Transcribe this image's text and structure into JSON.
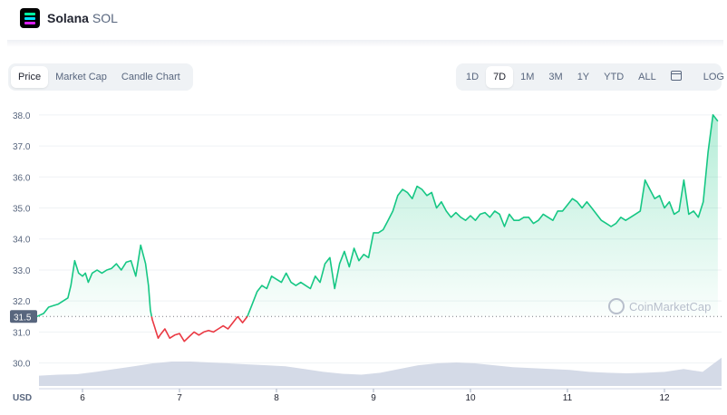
{
  "header": {
    "coin_name": "Solana",
    "ticker": "SOL"
  },
  "chart_tabs": [
    {
      "label": "Price",
      "active": true
    },
    {
      "label": "Market Cap",
      "active": false
    },
    {
      "label": "Candle Chart",
      "active": false
    }
  ],
  "ranges": [
    {
      "label": "1D",
      "active": false
    },
    {
      "label": "7D",
      "active": true
    },
    {
      "label": "1M",
      "active": false
    },
    {
      "label": "3M",
      "active": false
    },
    {
      "label": "1Y",
      "active": false
    },
    {
      "label": "YTD",
      "active": false
    },
    {
      "label": "ALL",
      "active": false
    }
  ],
  "log_label": "LOG",
  "icons": {
    "calendar": "calendar-icon",
    "logo": "solana-logo-icon",
    "watermark": "coinmarketcap-logo-icon"
  },
  "colors": {
    "up": "#16c784",
    "down": "#ea3943",
    "volume": "#cfd6e4",
    "badge": "#58667e"
  },
  "chart_data": {
    "type": "line",
    "currency_label": "USD",
    "x_ticks": [
      "6",
      "7",
      "8",
      "9",
      "10",
      "11",
      "12"
    ],
    "y_ticks": [
      "38.0",
      "37.0",
      "36.0",
      "35.0",
      "34.0",
      "33.0",
      "32.0",
      "31.0",
      "30.0"
    ],
    "ylim": [
      29.2,
      38.2
    ],
    "reference_price": 31.5,
    "reference_label": "31.5",
    "watermark": "CoinMarketCap",
    "series": [
      {
        "x": [
          5.53,
          5.6,
          5.65,
          5.7,
          5.75,
          5.8,
          5.85,
          5.88,
          5.92,
          5.96,
          6.0,
          6.03,
          6.06,
          6.1,
          6.15,
          6.2,
          6.25,
          6.3,
          6.35,
          6.4,
          6.45,
          6.5,
          6.55,
          6.6,
          6.65,
          6.68,
          6.7,
          6.72,
          6.74,
          6.76,
          6.78,
          6.8,
          6.85,
          6.9,
          6.95,
          7.0,
          7.05,
          7.1,
          7.15,
          7.2,
          7.25,
          7.3,
          7.35,
          7.4,
          7.45,
          7.5,
          7.55,
          7.6,
          7.65,
          7.7,
          7.75,
          7.8,
          7.85,
          7.9,
          7.95,
          8.0,
          8.05,
          8.1,
          8.15,
          8.2,
          8.25,
          8.3,
          8.35,
          8.4,
          8.45,
          8.5,
          8.55,
          8.6,
          8.65,
          8.7,
          8.75,
          8.8,
          8.85,
          8.9,
          8.95,
          9.0,
          9.05,
          9.1,
          9.15,
          9.2,
          9.25,
          9.3,
          9.35,
          9.4,
          9.45,
          9.5,
          9.55,
          9.6,
          9.65,
          9.7,
          9.75,
          9.8,
          9.85,
          9.9,
          9.95,
          10.0,
          10.05,
          10.1,
          10.15,
          10.2,
          10.25,
          10.3,
          10.35,
          10.4,
          10.45,
          10.5,
          10.55,
          10.6,
          10.65,
          10.7,
          10.75,
          10.8,
          10.85,
          10.9,
          10.95,
          11.0,
          11.05,
          11.1,
          11.15,
          11.2,
          11.25,
          11.3,
          11.35,
          11.4,
          11.45,
          11.5,
          11.55,
          11.6,
          11.65,
          11.7,
          11.75,
          11.8,
          11.85,
          11.9,
          11.95,
          12.0,
          12.05,
          12.1,
          12.15,
          12.2,
          12.25,
          12.3,
          12.35,
          12.4,
          12.45,
          12.5,
          12.55
        ],
        "y": [
          31.5,
          31.6,
          31.8,
          31.85,
          31.9,
          32.0,
          32.1,
          32.5,
          33.3,
          32.9,
          32.8,
          32.9,
          32.6,
          32.9,
          33.0,
          32.9,
          33.0,
          33.05,
          33.2,
          33.0,
          33.25,
          33.3,
          32.8,
          33.8,
          33.2,
          32.5,
          31.7,
          31.4,
          31.2,
          31.0,
          30.8,
          30.9,
          31.1,
          30.8,
          30.9,
          30.95,
          30.7,
          30.85,
          31.0,
          30.9,
          31.0,
          31.05,
          31.0,
          31.1,
          31.2,
          31.1,
          31.3,
          31.5,
          31.3,
          31.5,
          31.9,
          32.3,
          32.5,
          32.4,
          32.8,
          32.7,
          32.6,
          32.9,
          32.6,
          32.5,
          32.6,
          32.5,
          32.4,
          32.8,
          32.6,
          33.2,
          33.4,
          32.4,
          33.2,
          33.6,
          33.1,
          33.7,
          33.3,
          33.5,
          33.4,
          34.2,
          34.2,
          34.3,
          34.6,
          34.9,
          35.4,
          35.6,
          35.5,
          35.3,
          35.7,
          35.6,
          35.4,
          35.5,
          35.0,
          35.2,
          34.9,
          34.7,
          34.85,
          34.7,
          34.6,
          34.75,
          34.6,
          34.8,
          34.85,
          34.7,
          34.9,
          34.8,
          34.4,
          34.8,
          34.6,
          34.6,
          34.7,
          34.7,
          34.5,
          34.6,
          34.8,
          34.7,
          34.6,
          34.9,
          34.9,
          35.1,
          35.3,
          35.2,
          35.0,
          35.2,
          35.0,
          34.8,
          34.6,
          34.5,
          34.4,
          34.5,
          34.7,
          34.6,
          34.7,
          34.8,
          34.9,
          35.9,
          35.6,
          35.3,
          35.4,
          35.0,
          35.2,
          34.8,
          34.9,
          35.9,
          34.8,
          34.9,
          34.7,
          35.2,
          36.8,
          38.0,
          37.8
        ]
      }
    ],
    "volume_series": {
      "name": "",
      "values": [
        0.22,
        0.24,
        0.25,
        0.3,
        0.36,
        0.42,
        0.48,
        0.52,
        0.52,
        0.5,
        0.48,
        0.46,
        0.44,
        0.42,
        0.36,
        0.3,
        0.26,
        0.24,
        0.28,
        0.36,
        0.44,
        0.48,
        0.5,
        0.48,
        0.44,
        0.4,
        0.38,
        0.36,
        0.34,
        0.3,
        0.28,
        0.27,
        0.28,
        0.3,
        0.36,
        0.3,
        0.6
      ]
    }
  }
}
